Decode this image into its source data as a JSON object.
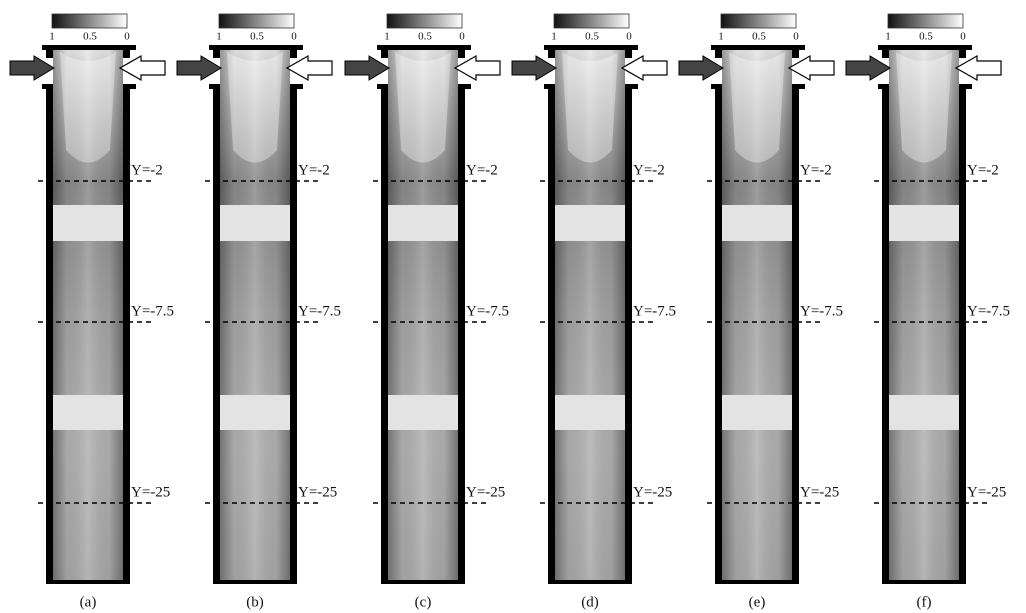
{
  "panels": [
    {
      "label": "(a)",
      "colorbar_ticks": [
        "1",
        "0.5",
        "0"
      ],
      "lines": [
        "Y=-2",
        "Y=-7.5",
        "Y=-25"
      ]
    },
    {
      "label": "(b)",
      "colorbar_ticks": [
        "1",
        "0.5",
        "0"
      ],
      "lines": [
        "Y=-2",
        "Y=-7.5",
        "Y=-25"
      ]
    },
    {
      "label": "(c)",
      "colorbar_ticks": [
        "1",
        "0.5",
        "0"
      ],
      "lines": [
        "Y=-2",
        "Y=-7.5",
        "Y=-25"
      ]
    },
    {
      "label": "(d)",
      "colorbar_ticks": [
        "1",
        "0.5",
        "0"
      ],
      "lines": [
        "Y=-2",
        "Y=-7.5",
        "Y=-25"
      ]
    },
    {
      "label": "(e)",
      "colorbar_ticks": [
        "1",
        "0.5",
        "0"
      ],
      "lines": [
        "Y=-2",
        "Y=-7.5",
        "Y=-25"
      ]
    },
    {
      "label": "(f)",
      "colorbar_ticks": [
        "1",
        "0.5",
        "0"
      ],
      "lines": [
        "Y=-2",
        "Y=-7.5",
        "Y=-25"
      ]
    }
  ]
}
